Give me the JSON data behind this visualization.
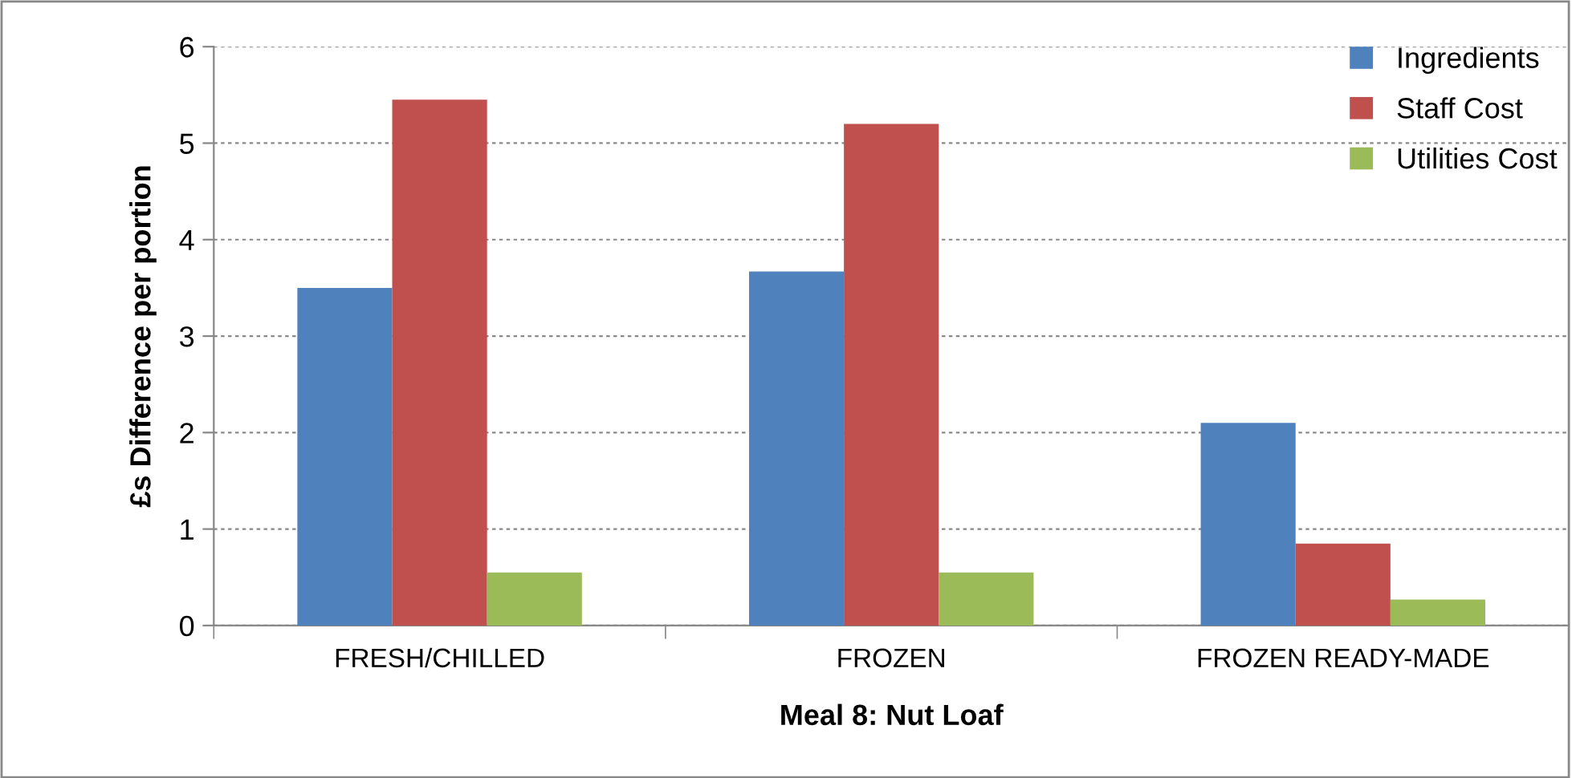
{
  "chart_data": {
    "type": "bar",
    "xlabel": "Meal 8: Nut Loaf",
    "ylabel": "£s Difference per portion",
    "categories": [
      "FRESH/CHILLED",
      "FROZEN",
      "FROZEN READY-MADE"
    ],
    "series": [
      {
        "name": "Ingredients",
        "color": "#4f81bd",
        "values": [
          3.5,
          3.67,
          2.1
        ]
      },
      {
        "name": "Staff Cost",
        "color": "#c0504d",
        "values": [
          5.45,
          5.2,
          0.85
        ]
      },
      {
        "name": "Utilities Cost",
        "color": "#9bbb59",
        "values": [
          0.55,
          0.55,
          0.27
        ]
      }
    ],
    "ylim": [
      0,
      6
    ],
    "yticks": [
      0,
      1,
      2,
      3,
      4,
      5,
      6
    ],
    "grid": "y",
    "legend": "top right"
  }
}
